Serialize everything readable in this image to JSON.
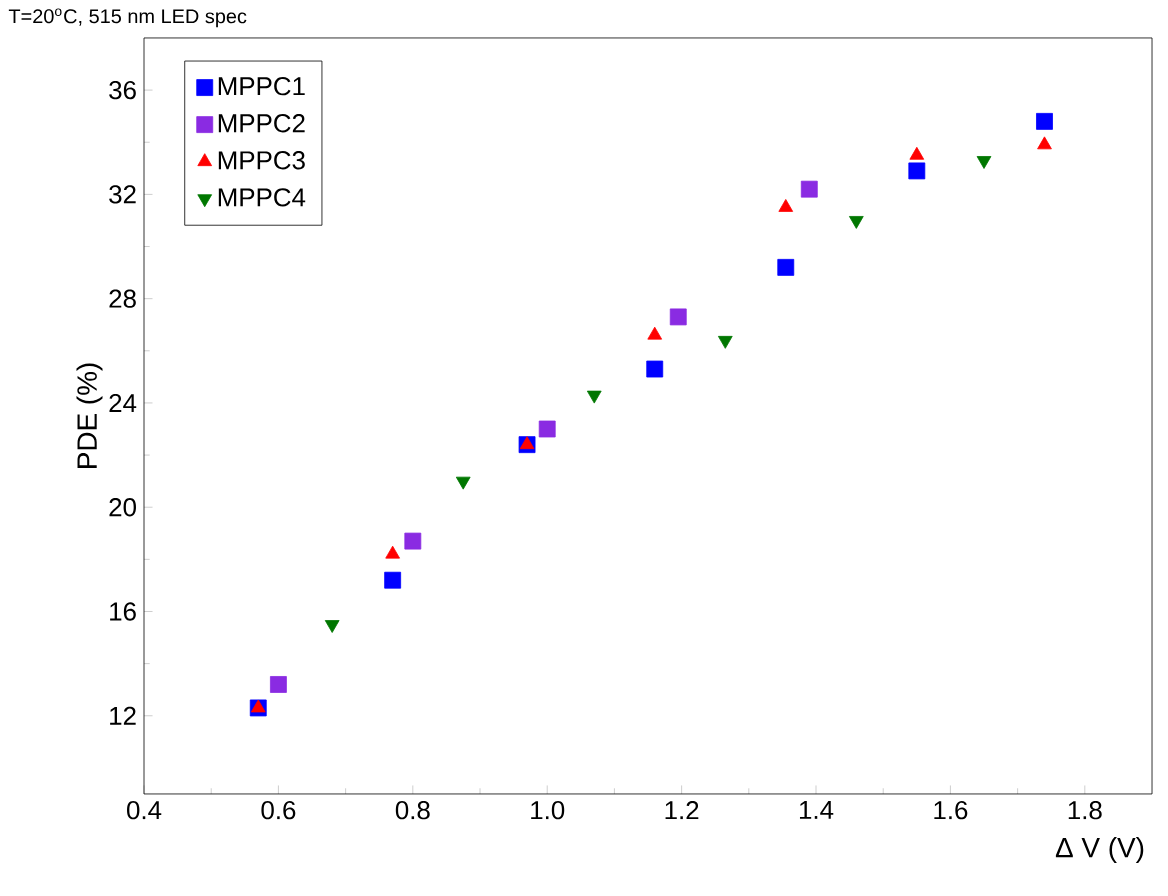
{
  "chart_data": {
    "type": "scatter",
    "title": "T=20$^{o}$C,  515 nm LED spec",
    "xlabel": "Δ V (V)",
    "ylabel": "PDE (%)",
    "xlim": [
      0.4,
      1.9
    ],
    "ylim": [
      9,
      38
    ],
    "xticks": [
      0.4,
      0.6,
      0.8,
      {
        "value": 1.0,
        "label": "1.0"
      },
      1.2,
      1.4,
      1.6,
      1.8
    ],
    "yticks": [
      12,
      16,
      20,
      24,
      28,
      32,
      36
    ],
    "grid": false,
    "legend": "top left",
    "series": [
      {
        "name": "MPPC1",
        "color": "#0000ff",
        "marker": "square",
        "x": [
          0.57,
          0.77,
          0.97,
          1.16,
          1.355,
          1.55,
          1.74
        ],
        "values": [
          12.3,
          17.2,
          22.4,
          25.3,
          29.2,
          32.9,
          34.8
        ]
      },
      {
        "name": "MPPC2",
        "color": "#8a2be2",
        "marker": "square",
        "x": [
          0.6,
          0.8,
          1.0,
          1.195,
          1.39
        ],
        "values": [
          13.2,
          18.7,
          23.0,
          27.3,
          32.2
        ]
      },
      {
        "name": "MPPC3",
        "color": "#ff0000",
        "marker": "triangle",
        "x": [
          0.57,
          0.77,
          0.97,
          1.16,
          1.355,
          1.55,
          1.74
        ],
        "values": [
          12.3,
          18.2,
          22.4,
          26.6,
          31.5,
          33.5,
          33.9
        ]
      },
      {
        "name": "MPPC4",
        "color": "#007700",
        "marker": "triangle down",
        "x": [
          0.68,
          0.875,
          1.07,
          1.265,
          1.46,
          1.65
        ],
        "values": [
          15.5,
          21.0,
          24.3,
          26.4,
          31.0,
          33.3
        ]
      }
    ]
  }
}
